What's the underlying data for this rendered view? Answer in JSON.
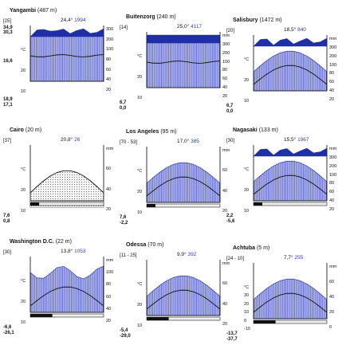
{
  "diagrams": [
    {
      "name": "Yangambi",
      "elev": "(487 m)",
      "years": "[25]",
      "temp": "24,4°",
      "precip": "1994",
      "left_values": [
        "34,9",
        "30,3",
        "16,6",
        "18,9",
        "17,1"
      ],
      "temp_ticks": [
        "°C",
        "20",
        "10"
      ],
      "precip_ticks": [
        "300",
        "200",
        "100",
        "80",
        "60",
        "40",
        "20"
      ]
    },
    {
      "name": "Buitenzorg",
      "elev": "(240 m)",
      "years": "[14]",
      "temp": "25,0°",
      "precip": "4117",
      "left_values": [
        "6,7",
        "0,0"
      ],
      "temp_ticks": [
        "°C",
        "20",
        "10"
      ],
      "precip_ticks": [
        "mm",
        "300",
        "200",
        "100",
        "80",
        "60",
        "40",
        "20"
      ]
    },
    {
      "name": "Salisbury",
      "elev": "(1472 m)",
      "years": "[20]",
      "temp": "18,5°",
      "precip": "840",
      "left_values": [
        "6,7",
        "0,0"
      ],
      "temp_ticks": [
        "°C",
        "20",
        "10"
      ],
      "precip_ticks": [
        "mm",
        "300",
        "200",
        "100",
        "80",
        "60",
        "40",
        "20"
      ]
    },
    {
      "name": "Cairo",
      "elev": "(20 m)",
      "years": "[37]",
      "temp": "20,8°",
      "precip": "26",
      "left_values": [
        "7,6",
        "0,8"
      ],
      "temp_ticks": [
        "°C",
        "20",
        "10"
      ],
      "precip_ticks": [
        "mm",
        "60",
        "40",
        "20"
      ]
    },
    {
      "name": "Los Angeles",
      "elev": "(95 m)",
      "years": "[70 - 53]",
      "temp": "17,0°",
      "precip": "385",
      "left_values": [
        "7,6",
        "-2,2"
      ],
      "temp_ticks": [
        "°C",
        "20",
        "10"
      ],
      "precip_ticks": [
        "mm",
        "60",
        "40",
        "20"
      ]
    },
    {
      "name": "Nagasaki",
      "elev": "(133 m)",
      "years": "[30]",
      "temp": "15,5°",
      "precip": "1967",
      "left_values": [
        "2,2",
        "-5,6"
      ],
      "temp_ticks": [
        "°C",
        "20",
        "10"
      ],
      "precip_ticks": [
        "mm",
        "300",
        "200",
        "100",
        "80",
        "60",
        "40",
        "20"
      ]
    },
    {
      "name": "Washington D.C.",
      "elev": "(22 m)",
      "years": "[30]",
      "temp": "13,8°",
      "precip": "1053",
      "left_values": [
        "-6,6",
        "-26,1"
      ],
      "temp_ticks": [
        "°C",
        "20",
        "10"
      ],
      "precip_ticks": [
        "mm",
        "100",
        "80",
        "60",
        "40",
        "20"
      ]
    },
    {
      "name": "Odessa",
      "elev": "(70 m)",
      "years": "[11 - 25]",
      "temp": "9,9°",
      "precip": "392",
      "left_values": [
        "-5,4",
        "-29,0"
      ],
      "temp_ticks": [
        "°C",
        "20",
        "10"
      ],
      "precip_ticks": [
        "mm",
        "60",
        "40",
        "20"
      ]
    },
    {
      "name": "Achtuba",
      "elev": "(5 m)",
      "years": "[24 - 10]",
      "temp": "7,7°",
      "precip": "255",
      "left_values": [
        "-13,7",
        "-37,7"
      ],
      "temp_ticks": [
        "°C",
        "30",
        "20",
        "10",
        "0",
        "-10"
      ],
      "precip_ticks": [
        "mm",
        "60",
        "40",
        "20",
        "0"
      ]
    }
  ]
}
